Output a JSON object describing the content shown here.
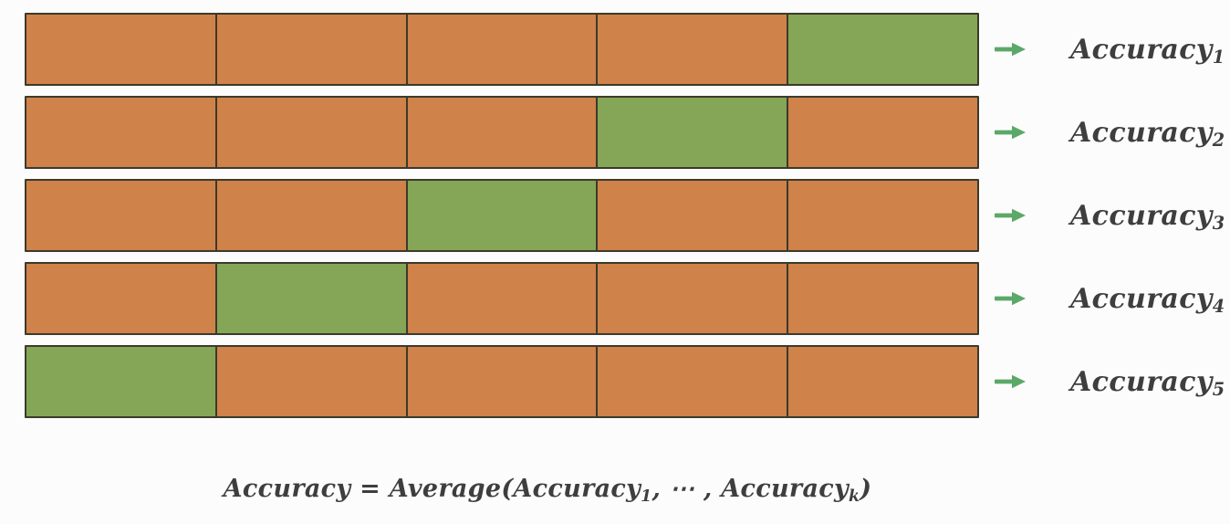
{
  "figure": {
    "description": "k-fold cross-validation diagram",
    "folds_per_row": 5,
    "colors": {
      "background": "#fcfcfc",
      "train_fill": "#cf8249",
      "validation_fill": "#85a656",
      "segment_border": "#3b3a2b",
      "arrow": "#5ba868",
      "text": "#3e3e3e"
    },
    "rows": [
      {
        "label": {
          "base": "Accuracy",
          "sub": "1"
        },
        "validation_fold": 5
      },
      {
        "label": {
          "base": "Accuracy",
          "sub": "2"
        },
        "validation_fold": 4
      },
      {
        "label": {
          "base": "Accuracy",
          "sub": "3"
        },
        "validation_fold": 3
      },
      {
        "label": {
          "base": "Accuracy",
          "sub": "4"
        },
        "validation_fold": 2
      },
      {
        "label": {
          "base": "Accuracy",
          "sub": "5"
        },
        "validation_fold": 1
      }
    ],
    "arrow_icon": "right-arrow"
  },
  "formula": {
    "plain_text": "Accuracy = Average(Accuracy1, ⋯ , Accuracyk)",
    "parts": [
      {
        "text": "Accuracy"
      },
      {
        "text": " = "
      },
      {
        "text": "Average("
      },
      {
        "text": "Accuracy"
      },
      {
        "text": "1",
        "sub": true
      },
      {
        "text": ", ⋯ , "
      },
      {
        "text": "Accuracy"
      },
      {
        "text": "k",
        "sub": true
      },
      {
        "text": ")"
      }
    ]
  }
}
